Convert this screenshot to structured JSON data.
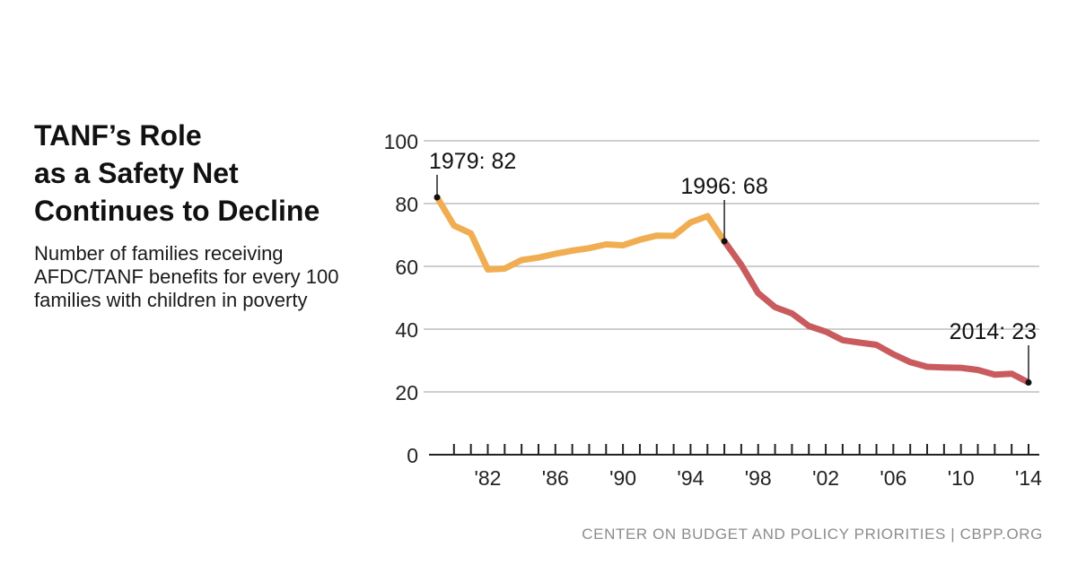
{
  "title": "TANF’s Role\nas a Safety Net\nContinues to Decline",
  "subtitle": "Number of families receiving AFDC/TANF benefits for every 100 families with children in poverty",
  "source": "CENTER ON BUDGET AND POLICY PRIORITIES | CBPP.ORG",
  "colors": {
    "afdc_segment": "#f0ad52",
    "tanf_segment": "#c95b5e",
    "gridline": "#bdbdbd",
    "axis": "#222222",
    "source_text": "#8c8c8c"
  },
  "chart_data": {
    "type": "line",
    "title": "TANF’s Role as a Safety Net Continues to Decline",
    "xlabel": "",
    "ylabel": "",
    "ylim": [
      0,
      100
    ],
    "xlim": [
      1979,
      2014
    ],
    "yticks": [
      0,
      20,
      40,
      60,
      80,
      100
    ],
    "xtick_labels": [
      {
        "year": 1982,
        "label": "'82"
      },
      {
        "year": 1986,
        "label": "'86"
      },
      {
        "year": 1990,
        "label": "'90"
      },
      {
        "year": 1994,
        "label": "'94"
      },
      {
        "year": 1998,
        "label": "'98"
      },
      {
        "year": 2002,
        "label": "'02"
      },
      {
        "year": 2006,
        "label": "'06"
      },
      {
        "year": 2010,
        "label": "'10"
      },
      {
        "year": 2014,
        "label": "'14"
      }
    ],
    "grid": "horizontal",
    "series": [
      {
        "segment": "AFDC",
        "color": "#f0ad52",
        "x": [
          1979,
          1980,
          1981,
          1982,
          1983,
          1984,
          1985,
          1986,
          1987,
          1988,
          1989,
          1990,
          1991,
          1992,
          1993,
          1994,
          1995,
          1996
        ],
        "values": [
          82,
          73,
          70.5,
          59,
          59.3,
          62,
          62.8,
          64,
          65,
          65.8,
          67,
          66.7,
          68.5,
          69.8,
          69.7,
          74,
          76,
          68
        ]
      },
      {
        "segment": "TANF",
        "color": "#c95b5e",
        "x": [
          1996,
          1997,
          1998,
          1999,
          2000,
          2001,
          2002,
          2003,
          2004,
          2005,
          2006,
          2007,
          2008,
          2009,
          2010,
          2011,
          2012,
          2013,
          2014
        ],
        "values": [
          68,
          60.5,
          51.5,
          47,
          45,
          41,
          39.2,
          36.5,
          35.7,
          35,
          32,
          29.5,
          28,
          27.8,
          27.7,
          27,
          25.5,
          25.8,
          23
        ]
      }
    ],
    "annotations": [
      {
        "year": 1979,
        "value": 82,
        "label": "1979:",
        "value_label": "82"
      },
      {
        "year": 1996,
        "value": 68,
        "label": "1996:",
        "value_label": "68"
      },
      {
        "year": 2014,
        "value": 23,
        "label": "2014:",
        "value_label": "23"
      }
    ]
  }
}
